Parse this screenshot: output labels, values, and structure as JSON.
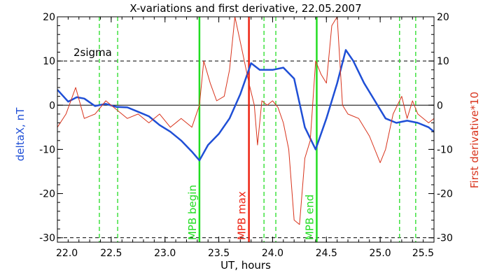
{
  "chart_data": {
    "type": "line",
    "title": "X-variations and first derivative, 22.05.2007",
    "xlabel": "UT, hours",
    "ylabel_left": "deltaX, nT",
    "ylabel_right": "First derivative*10",
    "xlim": [
      22.0,
      25.5
    ],
    "ylim": [
      -31,
      20
    ],
    "x_ticks": [
      "22.0",
      "22.5",
      "23.0",
      "23.5",
      "24.0",
      "24.5",
      "25.0",
      "25.5"
    ],
    "y_ticks": [
      "20",
      "10",
      "0",
      "-10",
      "-20",
      "-30"
    ],
    "colors": {
      "deltaX": "#1f4fd6",
      "derivative": "#d8331c",
      "mpb_boundary": "#22dd22",
      "mpb_max": "#ee2211"
    },
    "sigma_label": "2sigma",
    "sigma_levels": [
      10,
      -30
    ],
    "zero_level": 0,
    "series": [
      {
        "role": "deltaX",
        "x": [
          22.0,
          22.1,
          22.18,
          22.25,
          22.35,
          22.45,
          22.55,
          22.65,
          22.75,
          22.85,
          22.95,
          23.05,
          23.15,
          23.25,
          23.32,
          23.4,
          23.5,
          23.6,
          23.7,
          23.8,
          23.88,
          23.95,
          24.0,
          24.1,
          24.2,
          24.3,
          24.4,
          24.5,
          24.6,
          24.68,
          24.75,
          24.85,
          24.95,
          25.05,
          25.15,
          25.25,
          25.35,
          25.45,
          25.5
        ],
        "y": [
          3.5,
          0.8,
          1.8,
          1.5,
          -0.2,
          0.3,
          -0.4,
          -0.5,
          -1.5,
          -2.5,
          -4.5,
          -6,
          -8,
          -10.5,
          -12.5,
          -9,
          -6.5,
          -3,
          2.5,
          9.5,
          8,
          8,
          8,
          8.5,
          6,
          -5,
          -10,
          -3,
          5,
          12.5,
          10,
          5,
          1,
          -3,
          -4,
          -3.5,
          -4,
          -5,
          -6
        ]
      },
      {
        "role": "derivative",
        "x": [
          22.0,
          22.08,
          22.17,
          22.25,
          22.35,
          22.45,
          22.55,
          22.65,
          22.75,
          22.85,
          22.95,
          23.05,
          23.15,
          23.25,
          23.32,
          23.36,
          23.42,
          23.48,
          23.55,
          23.6,
          23.65,
          23.72,
          23.78,
          23.83,
          23.86,
          23.9,
          23.95,
          24.0,
          24.05,
          24.1,
          24.15,
          24.2,
          24.25,
          24.3,
          24.35,
          24.4,
          24.45,
          24.5,
          24.55,
          24.6,
          24.65,
          24.7,
          24.8,
          24.9,
          25.0,
          25.05,
          25.12,
          25.2,
          25.25,
          25.3,
          25.35,
          25.45,
          25.5
        ],
        "y": [
          -5,
          -2,
          4,
          -3,
          -2,
          1,
          -1,
          -3,
          -2,
          -4,
          -2,
          -5,
          -3,
          -5,
          0,
          10,
          5,
          1,
          2,
          8,
          20,
          12,
          5,
          0,
          -9,
          1,
          0,
          1,
          -0.5,
          -4,
          -10,
          -26,
          -27,
          -12,
          -8,
          10,
          7,
          5,
          18,
          20,
          0,
          -2,
          -3,
          -7,
          -13,
          -10,
          -2,
          2,
          -3,
          1,
          -2,
          -4,
          -3
        ]
      }
    ],
    "vertical_markers": [
      {
        "x": 22.39,
        "style": "dashed",
        "role": "mpb_boundary"
      },
      {
        "x": 22.56,
        "style": "dashed",
        "role": "mpb_boundary"
      },
      {
        "x": 23.32,
        "style": "solid",
        "role": "mpb_boundary",
        "label": "MPB begin"
      },
      {
        "x": 23.78,
        "style": "solid",
        "role": "mpb_max",
        "label": "MPB max"
      },
      {
        "x": 23.92,
        "style": "dashed",
        "role": "mpb_boundary"
      },
      {
        "x": 24.03,
        "style": "dashed",
        "role": "mpb_boundary"
      },
      {
        "x": 24.41,
        "style": "solid",
        "role": "mpb_boundary",
        "label": "MPB end"
      },
      {
        "x": 25.18,
        "style": "dashed",
        "role": "mpb_boundary"
      },
      {
        "x": 25.33,
        "style": "dashed",
        "role": "mpb_boundary"
      }
    ]
  }
}
